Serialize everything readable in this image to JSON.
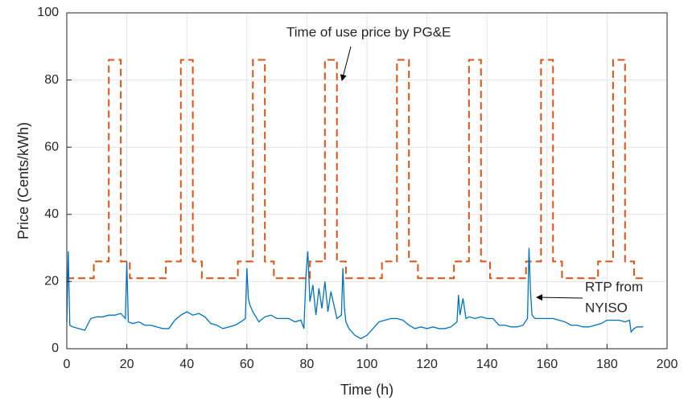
{
  "chart_data": {
    "type": "line",
    "xlabel": "Time (h)",
    "ylabel": "Price (Cents/kWh)",
    "xlim": [
      0,
      200
    ],
    "xticks": [
      0,
      20,
      40,
      60,
      80,
      100,
      120,
      140,
      160,
      180,
      200
    ],
    "ylim": [
      0,
      100
    ],
    "yticks": [
      0,
      20,
      40,
      60,
      80,
      100
    ],
    "grid": true,
    "annotations": [
      "Time of use price by PG&E",
      [
        "RTP from",
        "NYISO"
      ]
    ],
    "series": [
      {
        "color": "#d95319",
        "dashed": true,
        "x": [
          0,
          9,
          9,
          14,
          14,
          18,
          18,
          21,
          21,
          33,
          33,
          38,
          38,
          42,
          42,
          45,
          45,
          57,
          57,
          62,
          62,
          66,
          66,
          69,
          69,
          81,
          81,
          86,
          86,
          90,
          90,
          93,
          93,
          105,
          105,
          110,
          110,
          114,
          114,
          117,
          117,
          129,
          129,
          134,
          134,
          138,
          138,
          141,
          141,
          153,
          153,
          158,
          158,
          162,
          162,
          165,
          165,
          177,
          177,
          182,
          182,
          186,
          186,
          189,
          189,
          192
        ],
        "values": [
          21,
          21,
          26,
          26,
          86,
          86,
          26,
          26,
          21,
          21,
          26,
          26,
          86,
          86,
          26,
          26,
          21,
          21,
          26,
          26,
          86,
          86,
          26,
          26,
          21,
          21,
          26,
          26,
          86,
          86,
          26,
          26,
          21,
          21,
          26,
          26,
          86,
          86,
          26,
          26,
          21,
          21,
          26,
          26,
          86,
          86,
          26,
          26,
          21,
          21,
          26,
          26,
          86,
          86,
          26,
          26,
          21,
          21,
          26,
          26,
          86,
          86,
          26,
          26,
          21,
          21
        ]
      },
      {
        "color": "#0072bd",
        "dashed": false,
        "x": [
          0,
          0.5,
          1,
          2,
          4,
          6,
          8,
          10,
          12,
          14,
          16,
          18,
          19.5,
          20,
          20.5,
          22,
          24,
          26,
          28,
          30,
          32,
          34,
          36,
          38,
          40,
          42,
          44,
          46,
          48,
          50,
          52,
          54,
          56,
          58,
          59.5,
          60,
          60.5,
          61,
          62,
          64,
          66,
          68,
          70,
          72,
          74,
          76,
          78,
          79,
          79.7,
          80.3,
          81,
          82,
          83,
          84,
          85,
          86,
          87,
          88,
          90,
          91.5,
          92,
          92.5,
          93,
          94,
          96,
          98,
          100,
          102,
          104,
          106,
          108,
          110,
          112,
          114,
          116,
          118,
          120,
          122,
          124,
          126,
          128,
          130,
          130.5,
          131,
          132,
          133,
          134,
          136,
          138,
          140,
          142,
          144,
          146,
          148,
          150,
          152,
          153.5,
          154,
          154.5,
          155,
          156,
          158,
          160,
          162,
          164,
          166,
          168,
          170,
          172,
          174,
          176,
          178,
          180,
          182,
          184,
          186,
          187.5,
          188,
          189,
          190,
          192
        ],
        "values": [
          8,
          29,
          7,
          6.5,
          6,
          5.5,
          9,
          9.5,
          9.5,
          10,
          10,
          10.5,
          9,
          26,
          8,
          7.5,
          8,
          7,
          7,
          6.5,
          6,
          6,
          8.5,
          10,
          11,
          10,
          10.5,
          9.5,
          7.5,
          7,
          6,
          6.5,
          7,
          8,
          9,
          24,
          15,
          13,
          11,
          8,
          9.5,
          10,
          9,
          9,
          9,
          8,
          8.5,
          6,
          22,
          29,
          14,
          19,
          10,
          18,
          12,
          20,
          11,
          17,
          9,
          10,
          24,
          12,
          8,
          6,
          4,
          3,
          4,
          6,
          8,
          8.5,
          9,
          9,
          8.5,
          7,
          6,
          6.5,
          6,
          6.5,
          6,
          6,
          6.5,
          8,
          16,
          10,
          15,
          9,
          9.5,
          9,
          9.5,
          9,
          9,
          7,
          7,
          6.5,
          6.5,
          7,
          9,
          30,
          17,
          10,
          9,
          9,
          9,
          9,
          8.5,
          8,
          7,
          7,
          6.5,
          6.5,
          7,
          7.5,
          8.5,
          8.5,
          8.5,
          8,
          8.5,
          5,
          6,
          6.5,
          6.5
        ]
      }
    ]
  }
}
